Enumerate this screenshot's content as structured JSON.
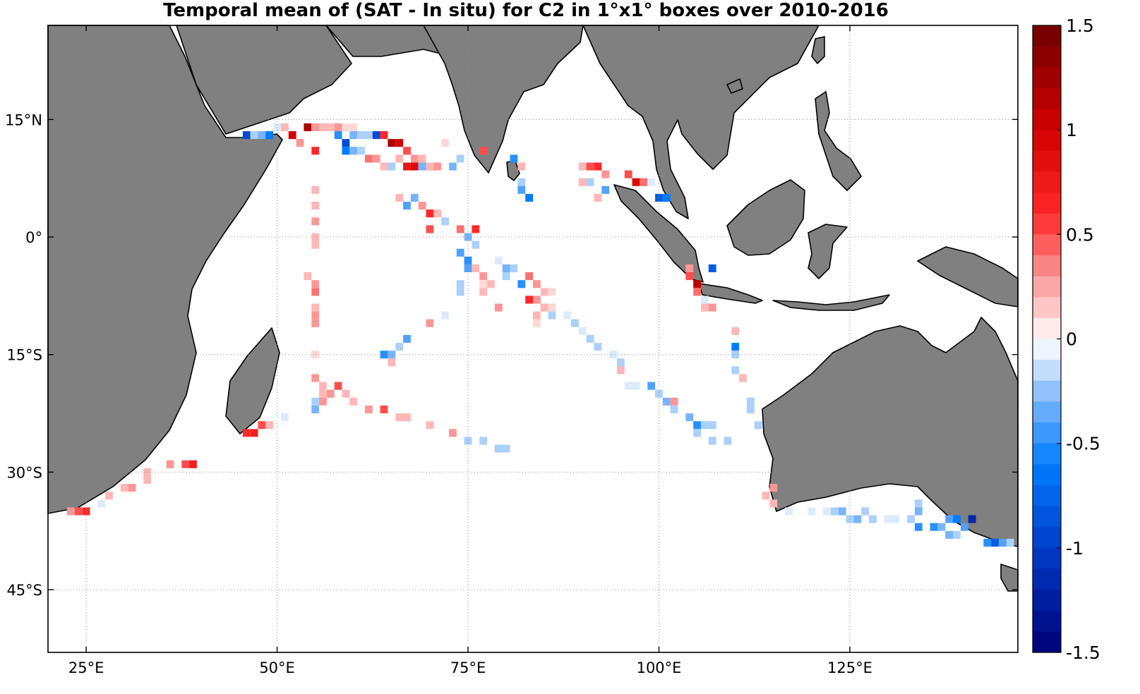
{
  "title": "Temporal mean of (SAT - In situ) for C2 in 1°x1° boxes over 2010-2016",
  "map": {
    "lon_range": [
      20,
      147
    ],
    "lat_range": [
      -53,
      27
    ],
    "gridlines": true,
    "land_color": "#808080",
    "ocean_color": "#ffffff",
    "lon_ticks": [
      {
        "value": 25,
        "label": "25°E"
      },
      {
        "value": 50,
        "label": "50°E"
      },
      {
        "value": 75,
        "label": "75°E"
      },
      {
        "value": 100,
        "label": "100°E"
      },
      {
        "value": 125,
        "label": "125°E"
      }
    ],
    "lat_ticks": [
      {
        "value": 15,
        "label": "15°N"
      },
      {
        "value": 0,
        "label": "0°"
      },
      {
        "value": -15,
        "label": "15°S"
      },
      {
        "value": -30,
        "label": "30°S"
      },
      {
        "value": -45,
        "label": "45°S"
      }
    ]
  },
  "colorbar": {
    "min": -1.5,
    "max": 1.5,
    "colormap": "blue-white-red diverging",
    "labels": [
      {
        "value": 1.5,
        "label": "1.5"
      },
      {
        "value": 1,
        "label": "1"
      },
      {
        "value": 0.5,
        "label": "0.5"
      },
      {
        "value": 0,
        "label": "0"
      },
      {
        "value": -0.5,
        "label": "-0.5"
      },
      {
        "value": -1,
        "label": "-1"
      },
      {
        "value": -1.5,
        "label": "-1.5"
      }
    ]
  },
  "chart_data": {
    "type": "heatmap",
    "value_unit": "SAT - In situ",
    "cells": [
      [
        46,
        13,
        -0.9
      ],
      [
        47,
        13,
        -0.2
      ],
      [
        48,
        13,
        -0.3
      ],
      [
        49,
        13,
        -0.6
      ],
      [
        50,
        14,
        -0.1
      ],
      [
        51,
        14,
        0.2
      ],
      [
        52,
        13,
        1.0
      ],
      [
        53,
        12,
        0.3
      ],
      [
        54,
        14,
        1.2
      ],
      [
        55,
        14,
        0.3
      ],
      [
        56,
        14,
        0.2
      ],
      [
        57,
        14,
        0.2
      ],
      [
        58,
        14,
        0.3
      ],
      [
        59,
        14,
        0.1
      ],
      [
        60,
        14,
        0.1
      ],
      [
        55,
        11,
        0.6
      ],
      [
        56,
        14,
        0.2
      ],
      [
        58,
        13,
        -0.5
      ],
      [
        59,
        12,
        -0.9
      ],
      [
        60,
        13,
        -0.3
      ],
      [
        61,
        13,
        -0.2
      ],
      [
        62,
        13,
        -0.2
      ],
      [
        63,
        13,
        -0.9
      ],
      [
        64,
        13,
        0.6
      ],
      [
        65,
        12,
        1.2
      ],
      [
        66,
        12,
        1.0
      ],
      [
        67,
        11,
        0.5
      ],
      [
        68,
        10,
        0.3
      ],
      [
        69,
        10,
        0.2
      ],
      [
        70,
        9,
        0.6
      ],
      [
        71,
        9,
        0.3
      ],
      [
        59,
        11,
        -0.6
      ],
      [
        60,
        11,
        -0.3
      ],
      [
        61,
        11,
        -0.2
      ],
      [
        62,
        10,
        0.4
      ],
      [
        63,
        10,
        0.3
      ],
      [
        64,
        9,
        0.2
      ],
      [
        65,
        9,
        -0.2
      ],
      [
        66,
        10,
        0.2
      ],
      [
        67,
        9,
        0.8
      ],
      [
        68,
        9,
        0.9
      ],
      [
        69,
        9,
        -0.3
      ],
      [
        70,
        9,
        0.2
      ],
      [
        72,
        12,
        0.1
      ],
      [
        73,
        9,
        -0.3
      ],
      [
        74,
        10,
        -0.2
      ],
      [
        77,
        11,
        0.5
      ],
      [
        81,
        10,
        -0.5
      ],
      [
        82,
        9,
        0.2
      ],
      [
        82,
        7,
        -0.2
      ],
      [
        82,
        6,
        -0.4
      ],
      [
        83,
        5,
        -0.6
      ],
      [
        55,
        6,
        0.2
      ],
      [
        55,
        4,
        0.2
      ],
      [
        55,
        2,
        0.3
      ],
      [
        55,
        0,
        0.2
      ],
      [
        55,
        -1,
        0.2
      ],
      [
        54,
        -5,
        0.2
      ],
      [
        55,
        -6,
        0.3
      ],
      [
        55,
        -7,
        0.4
      ],
      [
        55,
        -9,
        0.2
      ],
      [
        55,
        -10,
        0.3
      ],
      [
        55,
        -11,
        0.3
      ],
      [
        55,
        -15,
        0.1
      ],
      [
        66,
        5,
        0.2
      ],
      [
        67,
        4,
        -0.4
      ],
      [
        68,
        5,
        -0.3
      ],
      [
        69,
        4,
        0.3
      ],
      [
        70,
        3,
        0.6
      ],
      [
        71,
        3,
        0.2
      ],
      [
        70,
        1,
        0.5
      ],
      [
        72,
        2,
        -0.2
      ],
      [
        74,
        1,
        0.4
      ],
      [
        76,
        1,
        0.6
      ],
      [
        75,
        0,
        -0.3
      ],
      [
        76,
        -1,
        -0.2
      ],
      [
        74,
        -2,
        -0.4
      ],
      [
        75,
        -3,
        -0.5
      ],
      [
        75,
        -4,
        -0.4
      ],
      [
        76,
        -4,
        0.2
      ],
      [
        77,
        -5,
        0.3
      ],
      [
        77,
        -6,
        0.1
      ],
      [
        78,
        -6,
        0.2
      ],
      [
        77,
        -7,
        0.2
      ],
      [
        79,
        -3,
        -0.1
      ],
      [
        80,
        -4,
        -0.3
      ],
      [
        80,
        -5,
        -0.2
      ],
      [
        81,
        -4,
        -0.2
      ],
      [
        79,
        -9,
        0.3
      ],
      [
        74,
        -6,
        -0.2
      ],
      [
        74,
        -7,
        -0.2
      ],
      [
        72,
        -10,
        -0.1
      ],
      [
        70,
        -11,
        0.3
      ],
      [
        67,
        -13,
        -0.4
      ],
      [
        66,
        -14,
        -0.2
      ],
      [
        65,
        -15,
        -0.3
      ],
      [
        64,
        -15,
        -0.5
      ],
      [
        65,
        -16,
        0.2
      ],
      [
        82,
        -6,
        -0.5
      ],
      [
        83,
        -5,
        0.4
      ],
      [
        84,
        -6,
        0.3
      ],
      [
        85,
        -7,
        0.2
      ],
      [
        86,
        -7,
        0.1
      ],
      [
        83,
        -8,
        0.6
      ],
      [
        84,
        -8,
        0.3
      ],
      [
        85,
        -9,
        0.2
      ],
      [
        86,
        -9,
        0.1
      ],
      [
        84,
        -10,
        0.2
      ],
      [
        84,
        -11,
        0.1
      ],
      [
        86,
        -10,
        -0.2
      ],
      [
        88,
        -10,
        -0.1
      ],
      [
        89,
        -11,
        -0.2
      ],
      [
        90,
        -12,
        -0.1
      ],
      [
        91,
        -13,
        -0.2
      ],
      [
        92,
        -14,
        -0.2
      ],
      [
        94,
        -15,
        -0.1
      ],
      [
        95,
        -16,
        -0.2
      ],
      [
        95,
        -17,
        0.2
      ],
      [
        90,
        9,
        0.2
      ],
      [
        91,
        9,
        0.5
      ],
      [
        92,
        9,
        0.6
      ],
      [
        93,
        8,
        0.3
      ],
      [
        91,
        7,
        -0.2
      ],
      [
        90,
        7,
        0.2
      ],
      [
        93,
        6,
        -0.4
      ],
      [
        92,
        5,
        0.2
      ],
      [
        96,
        8,
        0.5
      ],
      [
        97,
        7,
        0.9
      ],
      [
        98,
        7,
        0.4
      ],
      [
        99,
        7,
        -0.1
      ],
      [
        100,
        5,
        -0.8
      ],
      [
        101,
        5,
        -0.6
      ],
      [
        104,
        -4,
        0.3
      ],
      [
        104,
        -5,
        0.5
      ],
      [
        105,
        -6,
        1.1
      ],
      [
        105,
        -7,
        0.4
      ],
      [
        107,
        -4,
        -0.8
      ],
      [
        106,
        -8,
        -0.1
      ],
      [
        106,
        -9,
        0.2
      ],
      [
        107,
        -9,
        0.3
      ],
      [
        110,
        -12,
        0.2
      ],
      [
        110,
        -14,
        -0.6
      ],
      [
        110,
        -15,
        -0.2
      ],
      [
        110,
        -17,
        -0.2
      ],
      [
        111,
        -18,
        0.2
      ],
      [
        96,
        -19,
        -0.1
      ],
      [
        97,
        -19,
        -0.1
      ],
      [
        99,
        -19,
        -0.4
      ],
      [
        100,
        -20,
        -0.2
      ],
      [
        101,
        -21,
        -0.3
      ],
      [
        102,
        -21,
        0.3
      ],
      [
        102,
        -22,
        -0.2
      ],
      [
        104,
        -23,
        -0.3
      ],
      [
        105,
        -24,
        -0.5
      ],
      [
        106,
        -24,
        -0.2
      ],
      [
        107,
        -24,
        -0.2
      ],
      [
        105,
        -25,
        -0.2
      ],
      [
        107,
        -26,
        -0.2
      ],
      [
        109,
        -26,
        -0.2
      ],
      [
        112,
        -21,
        -0.2
      ],
      [
        112,
        -22,
        -0.2
      ],
      [
        113,
        -24,
        -0.2
      ],
      [
        55,
        -18,
        0.3
      ],
      [
        56,
        -19,
        0.2
      ],
      [
        56,
        -21,
        0.3
      ],
      [
        57,
        -20,
        0.3
      ],
      [
        55,
        -22,
        -0.3
      ],
      [
        55,
        -21,
        -0.2
      ],
      [
        56,
        -20,
        0.2
      ],
      [
        58,
        -19,
        0.5
      ],
      [
        59,
        -20,
        0.2
      ],
      [
        60,
        -21,
        0.2
      ],
      [
        62,
        -22,
        0.3
      ],
      [
        64,
        -22,
        0.5
      ],
      [
        66,
        -23,
        0.2
      ],
      [
        67,
        -23,
        0.2
      ],
      [
        70,
        -24,
        0.2
      ],
      [
        73,
        -25,
        0.3
      ],
      [
        75,
        -26,
        -0.2
      ],
      [
        77,
        -26,
        -0.2
      ],
      [
        79,
        -27,
        -0.2
      ],
      [
        80,
        -27,
        -0.2
      ],
      [
        51,
        -23,
        -0.1
      ],
      [
        49,
        -24,
        0.2
      ],
      [
        48,
        -24,
        0.5
      ],
      [
        47,
        -25,
        0.7
      ],
      [
        46,
        -25,
        0.6
      ],
      [
        39,
        -29,
        0.7
      ],
      [
        38,
        -29,
        0.5
      ],
      [
        36,
        -29,
        0.3
      ],
      [
        33,
        -30,
        0.2
      ],
      [
        33,
        -31,
        0.2
      ],
      [
        31,
        -32,
        0.3
      ],
      [
        30,
        -32,
        0.2
      ],
      [
        28,
        -33,
        0.2
      ],
      [
        27,
        -34,
        -0.1
      ],
      [
        25,
        -35,
        0.6
      ],
      [
        24,
        -35,
        0.5
      ],
      [
        23,
        -35,
        0.3
      ],
      [
        114,
        -33,
        0.2
      ],
      [
        115,
        -32,
        0.3
      ],
      [
        115,
        -34,
        0.2
      ],
      [
        117,
        -35,
        -0.1
      ],
      [
        120,
        -35,
        -0.1
      ],
      [
        122,
        -35,
        -0.1
      ],
      [
        123,
        -35,
        -0.2
      ],
      [
        124,
        -35,
        -0.3
      ],
      [
        125,
        -36,
        -0.2
      ],
      [
        126,
        -36,
        -0.3
      ],
      [
        127,
        -35,
        -0.2
      ],
      [
        128,
        -36,
        -0.2
      ],
      [
        130,
        -36,
        -0.1
      ],
      [
        131,
        -36,
        -0.1
      ],
      [
        133,
        -36,
        -0.2
      ],
      [
        134,
        -34,
        -0.2
      ],
      [
        134,
        -35,
        -0.3
      ],
      [
        134,
        -37,
        -0.5
      ],
      [
        136,
        -37,
        -0.5
      ],
      [
        137,
        -37,
        -0.3
      ],
      [
        138,
        -38,
        -0.3
      ],
      [
        139,
        -38,
        -0.2
      ],
      [
        138,
        -36,
        -0.4
      ],
      [
        139,
        -36,
        -0.6
      ],
      [
        141,
        -36,
        -1.2
      ],
      [
        140,
        -37,
        -0.4
      ],
      [
        143,
        -39,
        -0.5
      ],
      [
        144,
        -39,
        -0.8
      ],
      [
        145,
        -39,
        -0.4
      ],
      [
        146,
        -39,
        -0.2
      ]
    ]
  }
}
